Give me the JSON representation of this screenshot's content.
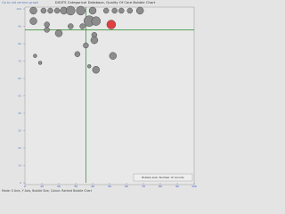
{
  "chart_data": {
    "type": "bubble",
    "title": "DIGITS Categorical Database, Quality Of Care Bubble Chart",
    "link": "Go to old version graph",
    "footer": "Mode: X Axis, Y Axis, Bubble Size, Colour: Ranked Bubble Chart",
    "legend_note": "Bubble size: Number of records",
    "xlim": [
      0,
      100
    ],
    "ylim": [
      0,
      100
    ],
    "xticks": [
      0,
      10,
      20,
      30,
      40,
      50,
      60,
      70,
      80,
      90,
      100
    ],
    "yticks": [
      0,
      10,
      20,
      30,
      40,
      50,
      60,
      70,
      80,
      90,
      100
    ],
    "reference_x": 36,
    "reference_y": 88,
    "series": [
      {
        "name": "Records",
        "color": "#8c8c8c",
        "x": [
          5,
          11,
          15,
          19,
          23,
          27,
          33,
          40,
          48,
          53,
          57,
          62,
          68,
          38,
          42,
          5,
          13,
          20,
          27,
          13,
          34,
          41,
          41,
          36,
          31,
          52,
          6,
          9,
          38,
          42
        ],
        "values": [
          99,
          99,
          99,
          99,
          99,
          99,
          99,
          99,
          99,
          99,
          99,
          99,
          99,
          93,
          93,
          93,
          91,
          86,
          90,
          88,
          90,
          85,
          82,
          79,
          74,
          73,
          73,
          69,
          67,
          65
        ],
        "sizes": [
          4,
          3,
          3,
          3,
          4,
          5,
          5,
          4,
          3,
          3,
          3,
          3,
          4,
          6,
          5,
          4,
          3,
          4,
          3,
          3,
          3,
          3,
          4,
          3,
          3,
          4,
          2,
          2,
          2,
          4
        ]
      },
      {
        "name": "Selected",
        "color": "#e04040",
        "x": [
          51
        ],
        "values": [
          91
        ],
        "sizes": [
          5
        ]
      }
    ]
  }
}
